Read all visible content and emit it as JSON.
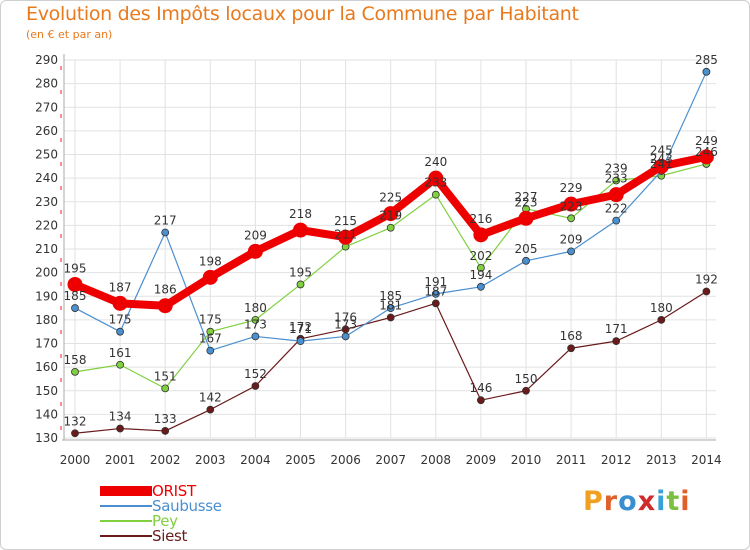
{
  "title": "Evolution des Impôts locaux pour la Commune par Habitant",
  "subtitle": "(en € et par an)",
  "brand": {
    "text": "Proxiti",
    "colors": [
      "#f0a020",
      "#e0602a",
      "#3a8fd0",
      "#d02a2a",
      "#3aa0d8",
      "#7cc040",
      "#e0602a"
    ]
  },
  "chart_data": {
    "type": "line",
    "title": "Evolution des Impôts locaux pour la Commune par Habitant",
    "subtitle": "(en € et par an)",
    "x": [
      "2000",
      "2001",
      "2002",
      "2003",
      "2004",
      "2005",
      "2006",
      "2007",
      "2008",
      "2009",
      "2010",
      "2011",
      "2012",
      "2013",
      "2014"
    ],
    "ylim": [
      130,
      290
    ],
    "yticks": [
      130,
      140,
      150,
      160,
      170,
      180,
      190,
      200,
      210,
      220,
      230,
      240,
      250,
      260,
      270,
      280,
      290
    ],
    "grid": true,
    "legend": "bottom-left",
    "series": [
      {
        "name": "ORIST",
        "color": "#ee0000",
        "values": [
          195,
          187,
          186,
          198,
          209,
          218,
          215,
          225,
          240,
          216,
          223,
          229,
          233,
          245,
          249
        ]
      },
      {
        "name": "Saubusse",
        "color": "#4a8fd0",
        "values": [
          185,
          175,
          217,
          167,
          173,
          171,
          173,
          185,
          191,
          194,
          205,
          209,
          222,
          243,
          285
        ]
      },
      {
        "name": "Pey",
        "color": "#80d040",
        "values": [
          158,
          161,
          151,
          175,
          180,
          195,
          211,
          219,
          233,
          202,
          227,
          223,
          239,
          241,
          246
        ]
      },
      {
        "name": "Siest",
        "color": "#6a1a1a",
        "values": [
          132,
          134,
          133,
          142,
          152,
          172,
          176,
          181,
          187,
          146,
          150,
          168,
          171,
          180,
          192
        ]
      }
    ]
  }
}
